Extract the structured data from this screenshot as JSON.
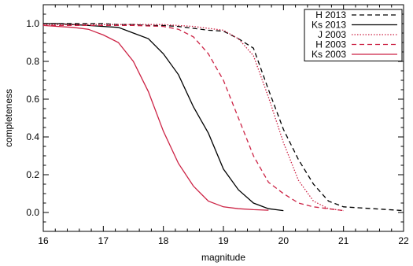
{
  "chart_data": {
    "type": "line",
    "xlabel": "magnitude",
    "ylabel": "completeness",
    "xlim": [
      16,
      22
    ],
    "ylim": [
      -0.1,
      1.1
    ],
    "xticks": [
      "16",
      "17",
      "18",
      "19",
      "20",
      "21",
      "22"
    ],
    "yticks": [
      "0.0",
      "0.2",
      "0.4",
      "0.6",
      "0.8",
      "1.0"
    ],
    "grid": false,
    "legend_position": "top-right",
    "series": [
      {
        "name": "H 2013",
        "color": "#000000",
        "dash": "dashed",
        "x": [
          16.0,
          16.25,
          16.5,
          16.75,
          17.0,
          17.25,
          17.5,
          17.75,
          18.0,
          18.25,
          18.5,
          18.75,
          19.0,
          19.25,
          19.5,
          19.75,
          20.0,
          20.25,
          20.5,
          20.75,
          21.0,
          21.25,
          21.5,
          22.0
        ],
        "y": [
          1.0,
          1.0,
          1.0,
          1.0,
          1.0,
          0.995,
          0.995,
          0.99,
          0.99,
          0.985,
          0.975,
          0.965,
          0.96,
          0.92,
          0.87,
          0.65,
          0.44,
          0.28,
          0.15,
          0.06,
          0.03,
          0.025,
          0.02,
          0.01
        ]
      },
      {
        "name": "Ks 2013",
        "color": "#000000",
        "dash": "solid",
        "x": [
          16.0,
          16.25,
          16.5,
          16.75,
          17.0,
          17.25,
          17.5,
          17.75,
          18.0,
          18.25,
          18.5,
          18.75,
          19.0,
          19.25,
          19.5,
          19.75,
          20.0
        ],
        "y": [
          1.0,
          1.0,
          0.995,
          0.99,
          0.985,
          0.98,
          0.95,
          0.92,
          0.84,
          0.73,
          0.56,
          0.42,
          0.23,
          0.12,
          0.05,
          0.02,
          0.01
        ]
      },
      {
        "name": "J 2003",
        "color": "#cc2244",
        "dash": "dotted",
        "x": [
          16.0,
          16.5,
          17.0,
          17.5,
          18.0,
          18.25,
          18.5,
          18.75,
          19.0,
          19.25,
          19.5,
          19.75,
          20.0,
          20.25,
          20.5,
          20.75,
          21.0
        ],
        "y": [
          0.995,
          0.995,
          0.995,
          0.995,
          0.995,
          0.99,
          0.985,
          0.975,
          0.965,
          0.92,
          0.83,
          0.61,
          0.37,
          0.17,
          0.06,
          0.02,
          0.01
        ]
      },
      {
        "name": "H 2003",
        "color": "#cc2244",
        "dash": "dashed",
        "x": [
          16.0,
          16.5,
          17.0,
          17.5,
          18.0,
          18.25,
          18.5,
          18.75,
          19.0,
          19.25,
          19.5,
          19.75,
          20.0,
          20.25,
          20.5,
          20.75,
          21.0
        ],
        "y": [
          0.99,
          0.99,
          0.99,
          0.99,
          0.985,
          0.97,
          0.93,
          0.84,
          0.7,
          0.5,
          0.3,
          0.16,
          0.1,
          0.05,
          0.03,
          0.02,
          0.01
        ]
      },
      {
        "name": "Ks 2003",
        "color": "#cc2244",
        "dash": "solid",
        "x": [
          16.0,
          16.25,
          16.5,
          16.75,
          17.0,
          17.25,
          17.5,
          17.75,
          18.0,
          18.25,
          18.5,
          18.75,
          19.0,
          19.25,
          19.5,
          19.75
        ],
        "y": [
          0.99,
          0.985,
          0.98,
          0.97,
          0.94,
          0.9,
          0.8,
          0.64,
          0.43,
          0.26,
          0.14,
          0.06,
          0.03,
          0.02,
          0.015,
          0.012
        ]
      }
    ]
  }
}
